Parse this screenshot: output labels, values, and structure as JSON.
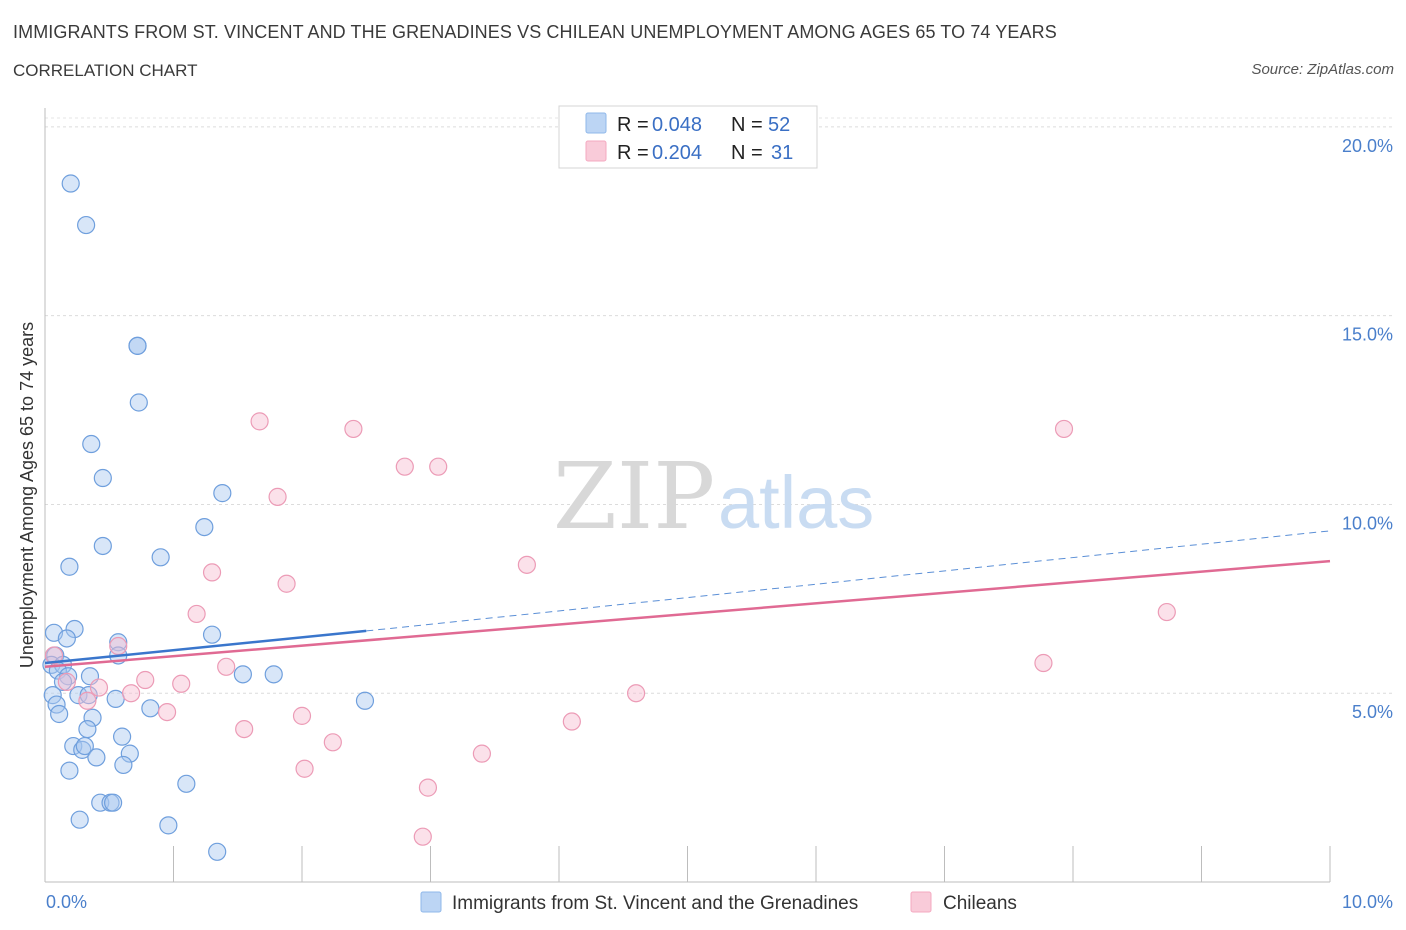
{
  "header": {
    "title": "IMMIGRANTS FROM ST. VINCENT AND THE GRENADINES VS CHILEAN UNEMPLOYMENT AMONG AGES 65 TO 74 YEARS",
    "subtitle": "CORRELATION CHART",
    "source": "Source: ZipAtlas.com"
  },
  "watermark": {
    "zip": "ZIP",
    "atlas": "atlas"
  },
  "legend": {
    "rows": [
      {
        "r_label": "R =",
        "r_value": "0.048",
        "n_label": "N =",
        "n_value": "52",
        "color": "#8fb8ea"
      },
      {
        "r_label": "R =",
        "r_value": "0.204",
        "n_label": "N =",
        "n_value": "31",
        "color": "#f4a9c0"
      }
    ]
  },
  "bottom_legend": {
    "items": [
      {
        "label": "Immigrants from St. Vincent and the Grenadines",
        "color": "#8fb8ea"
      },
      {
        "label": "Chileans",
        "color": "#f4a9c0"
      }
    ]
  },
  "chart_data": {
    "type": "scatter",
    "title": "IMMIGRANTS FROM ST. VINCENT AND THE GRENADINES VS CHILEAN UNEMPLOYMENT AMONG AGES 65 TO 74 YEARS",
    "xlabel": "",
    "ylabel": "Unemployment Among Ages 65 to 74 years",
    "xlim": [
      0,
      10
    ],
    "ylim": [
      0,
      20.5
    ],
    "x_tick_labels": [
      "0.0%",
      "10.0%"
    ],
    "y_ticks": [
      5,
      10,
      15,
      20
    ],
    "y_tick_labels": [
      "5.0%",
      "10.0%",
      "15.0%",
      "20.0%"
    ],
    "grid": true,
    "legend_position": "top-center",
    "colors": {
      "blue": "#4a86d4",
      "blue_fill": "#a9c8ef",
      "pink": "#e3729a",
      "pink_fill": "#f7bdd0",
      "axis_text": "#4a7fcb"
    },
    "series": [
      {
        "name": "Immigrants from St. Vincent and the Grenadines",
        "color": "#4a86d4",
        "points": [
          [
            0.2,
            18.5
          ],
          [
            0.32,
            17.4
          ],
          [
            0.72,
            14.2
          ],
          [
            0.72,
            14.2
          ],
          [
            0.73,
            12.7
          ],
          [
            0.36,
            11.6
          ],
          [
            0.45,
            10.7
          ],
          [
            1.38,
            10.3
          ],
          [
            1.24,
            9.4
          ],
          [
            0.45,
            8.9
          ],
          [
            0.9,
            8.6
          ],
          [
            0.19,
            8.35
          ],
          [
            0.23,
            6.7
          ],
          [
            0.57,
            6.35
          ],
          [
            0.07,
            6.6
          ],
          [
            0.17,
            6.45
          ],
          [
            1.3,
            6.55
          ],
          [
            0.08,
            6.0
          ],
          [
            0.57,
            6.0
          ],
          [
            0.05,
            5.75
          ],
          [
            0.14,
            5.75
          ],
          [
            0.1,
            5.6
          ],
          [
            0.18,
            5.45
          ],
          [
            0.35,
            5.45
          ],
          [
            0.14,
            5.3
          ],
          [
            1.54,
            5.5
          ],
          [
            1.78,
            5.5
          ],
          [
            0.06,
            4.95
          ],
          [
            0.26,
            4.95
          ],
          [
            0.34,
            4.95
          ],
          [
            0.55,
            4.85
          ],
          [
            0.09,
            4.7
          ],
          [
            0.11,
            4.45
          ],
          [
            0.82,
            4.6
          ],
          [
            2.49,
            4.8
          ],
          [
            0.37,
            4.35
          ],
          [
            0.6,
            3.85
          ],
          [
            0.33,
            4.05
          ],
          [
            0.22,
            3.6
          ],
          [
            0.29,
            3.5
          ],
          [
            0.31,
            3.6
          ],
          [
            0.4,
            3.3
          ],
          [
            0.66,
            3.4
          ],
          [
            0.61,
            3.1
          ],
          [
            0.19,
            2.95
          ],
          [
            1.1,
            2.6
          ],
          [
            0.43,
            2.1
          ],
          [
            0.51,
            2.1
          ],
          [
            0.53,
            2.1
          ],
          [
            0.27,
            1.65
          ],
          [
            0.96,
            1.5
          ],
          [
            1.34,
            0.8
          ]
        ]
      },
      {
        "name": "Chileans",
        "color": "#e3729a",
        "points": [
          [
            1.67,
            12.2
          ],
          [
            2.4,
            12.0
          ],
          [
            7.93,
            12.0
          ],
          [
            2.8,
            11.0
          ],
          [
            3.06,
            11.0
          ],
          [
            1.81,
            10.2
          ],
          [
            3.75,
            8.4
          ],
          [
            1.3,
            8.2
          ],
          [
            1.88,
            7.9
          ],
          [
            1.18,
            7.1
          ],
          [
            8.73,
            7.15
          ],
          [
            0.57,
            6.25
          ],
          [
            0.07,
            6.0
          ],
          [
            1.41,
            5.7
          ],
          [
            7.77,
            5.8
          ],
          [
            0.78,
            5.35
          ],
          [
            1.06,
            5.25
          ],
          [
            0.17,
            5.3
          ],
          [
            0.42,
            5.15
          ],
          [
            0.67,
            5.0
          ],
          [
            4.6,
            5.0
          ],
          [
            0.33,
            4.8
          ],
          [
            0.95,
            4.5
          ],
          [
            2.0,
            4.4
          ],
          [
            4.1,
            4.25
          ],
          [
            1.55,
            4.05
          ],
          [
            2.24,
            3.7
          ],
          [
            3.4,
            3.4
          ],
          [
            2.02,
            3.0
          ],
          [
            2.98,
            2.5
          ],
          [
            2.94,
            1.2
          ]
        ]
      }
    ],
    "trendlines": [
      {
        "series": "Immigrants from St. Vincent and the Grenadines",
        "x_solid": [
          0,
          2.5
        ],
        "y_solid": [
          5.8,
          6.65
        ],
        "x_dashed": [
          2.5,
          10
        ],
        "y_dashed": [
          6.65,
          9.3
        ]
      },
      {
        "series": "Chileans",
        "x": [
          0,
          10
        ],
        "y": [
          5.7,
          8.5
        ]
      }
    ]
  }
}
